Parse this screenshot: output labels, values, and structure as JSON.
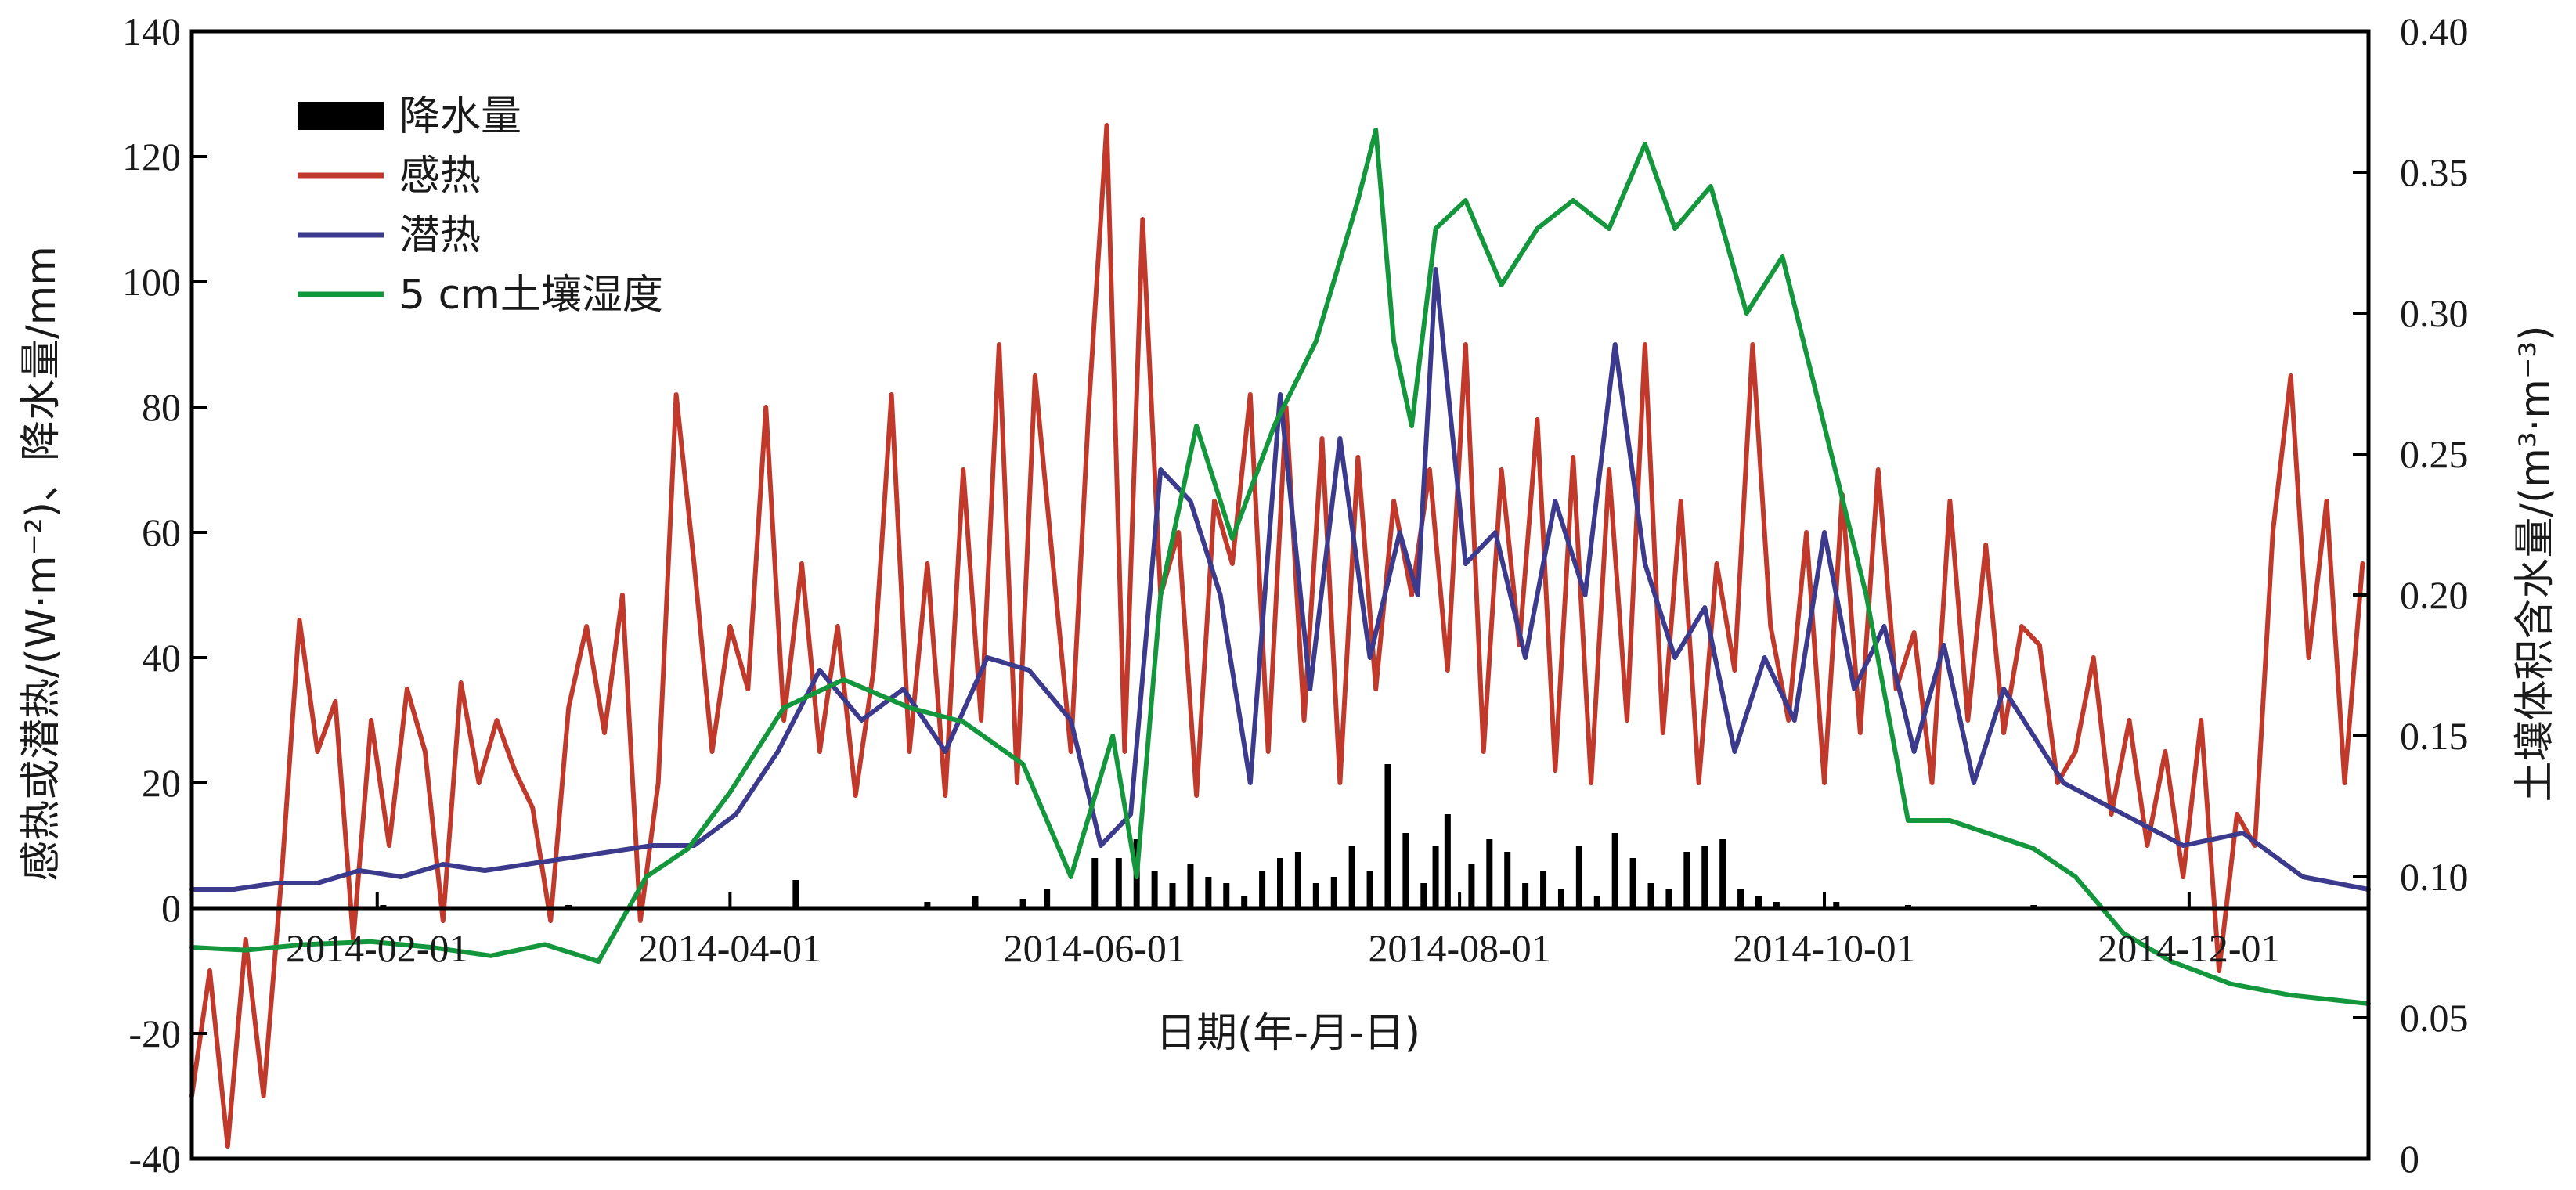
{
  "chart_data": {
    "type": "line",
    "xlabel": "日期(年-月-日)",
    "ylabel_left": "感热或潜热/(W·m⁻²)、降水量/mm",
    "ylabel_right": "土壤体积含水量/(m³·m⁻³)",
    "x_range": [
      "2014-01-01",
      "2014-12-31"
    ],
    "x_ticks": [
      "2014-02-01",
      "2014-04-01",
      "2014-06-01",
      "2014-08-01",
      "2014-10-01",
      "2014-12-01"
    ],
    "ylim_left": [
      -40,
      140
    ],
    "yticks_left": [
      -40,
      -20,
      0,
      20,
      40,
      60,
      80,
      100,
      120,
      140
    ],
    "ylim_right": [
      0,
      0.4
    ],
    "yticks_right": [
      "0",
      "0.05",
      "0.10",
      "0.15",
      "0.20",
      "0.25",
      "0.30",
      "0.35",
      "0.40"
    ],
    "grid": false,
    "legend_position": "top-left",
    "legend": [
      "降水量",
      "感热",
      "潜热",
      "5 cm土壤湿度"
    ],
    "series": [
      {
        "name": "降水量",
        "kind": "bar",
        "axis": "left",
        "color": "#000000",
        "x": [
          "2014-02-02",
          "2014-03-05",
          "2014-04-12",
          "2014-05-04",
          "2014-05-12",
          "2014-05-20",
          "2014-05-24",
          "2014-06-01",
          "2014-06-05",
          "2014-06-08",
          "2014-06-11",
          "2014-06-14",
          "2014-06-17",
          "2014-06-20",
          "2014-06-23",
          "2014-06-26",
          "2014-06-29",
          "2014-07-02",
          "2014-07-05",
          "2014-07-08",
          "2014-07-11",
          "2014-07-14",
          "2014-07-17",
          "2014-07-20",
          "2014-07-23",
          "2014-07-26",
          "2014-07-28",
          "2014-07-30",
          "2014-08-03",
          "2014-08-06",
          "2014-08-09",
          "2014-08-12",
          "2014-08-15",
          "2014-08-18",
          "2014-08-21",
          "2014-08-24",
          "2014-08-27",
          "2014-08-30",
          "2014-09-02",
          "2014-09-05",
          "2014-09-08",
          "2014-09-11",
          "2014-09-14",
          "2014-09-17",
          "2014-09-20",
          "2014-09-23",
          "2014-10-03",
          "2014-10-15",
          "2014-11-05"
        ],
        "values": [
          0.5,
          0.5,
          4.5,
          1,
          2,
          1.5,
          3,
          8,
          8,
          11,
          6,
          4,
          7,
          5,
          4,
          2,
          6,
          8,
          9,
          4,
          5,
          10,
          6,
          23,
          12,
          4,
          10,
          15,
          7,
          11,
          9,
          4,
          6,
          3,
          10,
          2,
          12,
          8,
          4,
          3,
          9,
          10,
          11,
          3,
          2,
          1,
          1,
          0.5,
          0.5
        ]
      },
      {
        "name": "感热",
        "kind": "line",
        "axis": "left",
        "color": "#c0392b",
        "x": [
          "2014-01-01",
          "2014-01-04",
          "2014-01-07",
          "2014-01-10",
          "2014-01-13",
          "2014-01-16",
          "2014-01-19",
          "2014-01-22",
          "2014-01-25",
          "2014-01-28",
          "2014-01-31",
          "2014-02-03",
          "2014-02-06",
          "2014-02-09",
          "2014-02-12",
          "2014-02-15",
          "2014-02-18",
          "2014-02-21",
          "2014-02-24",
          "2014-02-27",
          "2014-03-02",
          "2014-03-05",
          "2014-03-08",
          "2014-03-11",
          "2014-03-14",
          "2014-03-17",
          "2014-03-20",
          "2014-03-23",
          "2014-03-26",
          "2014-03-29",
          "2014-04-01",
          "2014-04-04",
          "2014-04-07",
          "2014-04-10",
          "2014-04-13",
          "2014-04-16",
          "2014-04-19",
          "2014-04-22",
          "2014-04-25",
          "2014-04-28",
          "2014-05-01",
          "2014-05-04",
          "2014-05-07",
          "2014-05-10",
          "2014-05-13",
          "2014-05-16",
          "2014-05-19",
          "2014-05-22",
          "2014-05-25",
          "2014-05-28",
          "2014-05-31",
          "2014-06-03",
          "2014-06-06",
          "2014-06-09",
          "2014-06-12",
          "2014-06-15",
          "2014-06-18",
          "2014-06-21",
          "2014-06-24",
          "2014-06-27",
          "2014-06-30",
          "2014-07-03",
          "2014-07-06",
          "2014-07-09",
          "2014-07-12",
          "2014-07-15",
          "2014-07-18",
          "2014-07-21",
          "2014-07-24",
          "2014-07-27",
          "2014-07-30",
          "2014-08-02",
          "2014-08-05",
          "2014-08-08",
          "2014-08-11",
          "2014-08-14",
          "2014-08-17",
          "2014-08-20",
          "2014-08-23",
          "2014-08-26",
          "2014-08-29",
          "2014-09-01",
          "2014-09-04",
          "2014-09-07",
          "2014-09-10",
          "2014-09-13",
          "2014-09-16",
          "2014-09-19",
          "2014-09-22",
          "2014-09-25",
          "2014-09-28",
          "2014-10-01",
          "2014-10-04",
          "2014-10-07",
          "2014-10-10",
          "2014-10-13",
          "2014-10-16",
          "2014-10-19",
          "2014-10-22",
          "2014-10-25",
          "2014-10-28",
          "2014-10-31",
          "2014-11-03",
          "2014-11-06",
          "2014-11-09",
          "2014-11-12",
          "2014-11-15",
          "2014-11-18",
          "2014-11-21",
          "2014-11-24",
          "2014-11-27",
          "2014-11-30",
          "2014-12-03",
          "2014-12-06",
          "2014-12-09",
          "2014-12-12",
          "2014-12-15",
          "2014-12-18",
          "2014-12-21",
          "2014-12-24",
          "2014-12-27",
          "2014-12-30"
        ],
        "values": [
          -30,
          -10,
          -38,
          -5,
          -30,
          5,
          46,
          25,
          33,
          -5,
          30,
          10,
          35,
          25,
          -2,
          36,
          20,
          30,
          22,
          16,
          -2,
          32,
          45,
          28,
          50,
          -2,
          20,
          82,
          55,
          25,
          45,
          35,
          80,
          30,
          55,
          25,
          45,
          18,
          38,
          82,
          25,
          55,
          18,
          70,
          30,
          90,
          20,
          85,
          55,
          25,
          80,
          125,
          25,
          110,
          50,
          60,
          18,
          65,
          55,
          82,
          25,
          80,
          30,
          75,
          20,
          72,
          35,
          65,
          50,
          70,
          38,
          90,
          25,
          70,
          42,
          78,
          22,
          72,
          20,
          70,
          30,
          90,
          28,
          65,
          20,
          55,
          38,
          90,
          45,
          30,
          60,
          20,
          66,
          28,
          70,
          35,
          44,
          20,
          65,
          30,
          58,
          28,
          45,
          42,
          20,
          25,
          40,
          15,
          30,
          10,
          25,
          5,
          30,
          -10,
          15,
          10,
          60,
          85,
          40,
          65,
          20,
          55
        ]
      },
      {
        "name": "潜热",
        "kind": "line",
        "axis": "left",
        "color": "#3c3a8c",
        "x": [
          "2014-01-01",
          "2014-01-08",
          "2014-01-15",
          "2014-01-22",
          "2014-01-29",
          "2014-02-05",
          "2014-02-12",
          "2014-02-19",
          "2014-02-26",
          "2014-03-05",
          "2014-03-12",
          "2014-03-19",
          "2014-03-26",
          "2014-04-02",
          "2014-04-09",
          "2014-04-16",
          "2014-04-23",
          "2014-04-30",
          "2014-05-07",
          "2014-05-14",
          "2014-05-21",
          "2014-05-28",
          "2014-06-02",
          "2014-06-07",
          "2014-06-12",
          "2014-06-17",
          "2014-06-22",
          "2014-06-27",
          "2014-07-02",
          "2014-07-07",
          "2014-07-12",
          "2014-07-17",
          "2014-07-22",
          "2014-07-25",
          "2014-07-28",
          "2014-08-02",
          "2014-08-07",
          "2014-08-12",
          "2014-08-17",
          "2014-08-22",
          "2014-08-27",
          "2014-09-01",
          "2014-09-06",
          "2014-09-11",
          "2014-09-16",
          "2014-09-21",
          "2014-09-26",
          "2014-10-01",
          "2014-10-06",
          "2014-10-11",
          "2014-10-16",
          "2014-10-21",
          "2014-10-26",
          "2014-10-31",
          "2014-11-10",
          "2014-11-20",
          "2014-11-30",
          "2014-12-10",
          "2014-12-20",
          "2014-12-31"
        ],
        "values": [
          3,
          3,
          4,
          4,
          6,
          5,
          7,
          6,
          7,
          8,
          9,
          10,
          10,
          15,
          25,
          38,
          30,
          35,
          25,
          40,
          38,
          30,
          10,
          15,
          70,
          65,
          50,
          20,
          82,
          35,
          75,
          40,
          60,
          50,
          102,
          55,
          60,
          40,
          65,
          50,
          90,
          55,
          40,
          48,
          25,
          40,
          30,
          60,
          35,
          45,
          25,
          42,
          20,
          35,
          20,
          15,
          10,
          12,
          5,
          3
        ]
      },
      {
        "name": "5 cm土壤湿度",
        "kind": "line",
        "axis": "right",
        "color": "#14973c",
        "x": [
          "2014-01-01",
          "2014-01-10",
          "2014-01-20",
          "2014-01-31",
          "2014-02-10",
          "2014-02-20",
          "2014-03-01",
          "2014-03-10",
          "2014-03-18",
          "2014-03-25",
          "2014-04-01",
          "2014-04-10",
          "2014-04-20",
          "2014-05-01",
          "2014-05-10",
          "2014-05-20",
          "2014-05-28",
          "2014-06-04",
          "2014-06-08",
          "2014-06-12",
          "2014-06-18",
          "2014-06-24",
          "2014-07-01",
          "2014-07-08",
          "2014-07-15",
          "2014-07-18",
          "2014-07-21",
          "2014-07-24",
          "2014-07-28",
          "2014-08-02",
          "2014-08-08",
          "2014-08-14",
          "2014-08-20",
          "2014-08-26",
          "2014-09-01",
          "2014-09-06",
          "2014-09-12",
          "2014-09-18",
          "2014-09-24",
          "2014-10-01",
          "2014-10-08",
          "2014-10-15",
          "2014-10-22",
          "2014-10-29",
          "2014-11-05",
          "2014-11-12",
          "2014-11-20",
          "2014-11-28",
          "2014-12-08",
          "2014-12-18",
          "2014-12-31"
        ],
        "values": [
          0.075,
          0.074,
          0.076,
          0.077,
          0.075,
          0.072,
          0.076,
          0.07,
          0.1,
          0.11,
          0.13,
          0.16,
          0.17,
          0.16,
          0.155,
          0.14,
          0.1,
          0.15,
          0.1,
          0.2,
          0.26,
          0.22,
          0.26,
          0.29,
          0.34,
          0.365,
          0.29,
          0.26,
          0.33,
          0.34,
          0.31,
          0.33,
          0.34,
          0.33,
          0.36,
          0.33,
          0.345,
          0.3,
          0.32,
          0.26,
          0.2,
          0.12,
          0.12,
          0.115,
          0.11,
          0.1,
          0.08,
          0.07,
          0.062,
          0.058,
          0.055
        ]
      }
    ]
  }
}
